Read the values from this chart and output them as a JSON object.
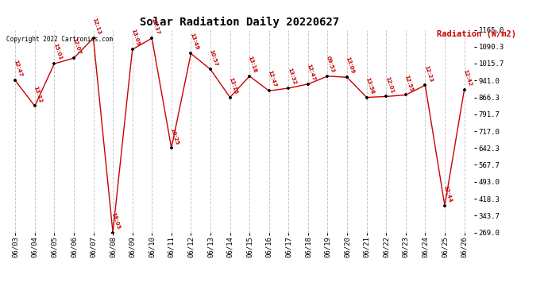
{
  "title": "Solar Radiation Daily 20220627",
  "ylabel": "Radiation (W/m2)",
  "copyright": "Copyright 2022 Cartronics.com",
  "background_color": "#ffffff",
  "grid_color": "#c8c8c8",
  "line_color": "#cc0000",
  "point_color": "#000000",
  "label_color": "#cc0000",
  "dates": [
    "06/03",
    "06/04",
    "06/05",
    "06/06",
    "06/07",
    "06/08",
    "06/09",
    "06/10",
    "06/11",
    "06/12",
    "06/13",
    "06/14",
    "06/15",
    "06/16",
    "06/17",
    "06/18",
    "06/19",
    "06/20",
    "06/21",
    "06/22",
    "06/23",
    "06/24",
    "06/25",
    "06/26"
  ],
  "values": [
    941.0,
    828.0,
    1015.0,
    1040.0,
    1128.0,
    269.0,
    1078.0,
    1128.0,
    642.3,
    1060.0,
    990.0,
    866.3,
    960.0,
    895.0,
    907.0,
    925.0,
    960.0,
    955.0,
    866.3,
    870.0,
    877.0,
    920.0,
    388.0,
    900.0
  ],
  "time_labels": [
    "12:47",
    "13:12",
    "15:01",
    "12:07",
    "12:13",
    "18:05",
    "13:09",
    "12:37",
    "10:25",
    "13:49",
    "10:57",
    "13:15",
    "13:18",
    "12:47",
    "13:32",
    "12:47",
    "09:53",
    "13:09",
    "13:58",
    "12:01",
    "12:55",
    "12:23",
    "12:44",
    "12:42"
  ],
  "ylim_min": 269.0,
  "ylim_max": 1165.0,
  "yticks": [
    269.0,
    343.7,
    418.3,
    493.0,
    567.7,
    642.3,
    717.0,
    791.7,
    866.3,
    941.0,
    1015.7,
    1090.3,
    1165.0
  ],
  "ytick_labels": [
    "269.0",
    "343.7",
    "418.3",
    "493.0",
    "567.7",
    "642.3",
    "717.0",
    "791.7",
    "866.3",
    "941.0",
    "1015.7",
    "1090.3",
    "1165.0"
  ]
}
